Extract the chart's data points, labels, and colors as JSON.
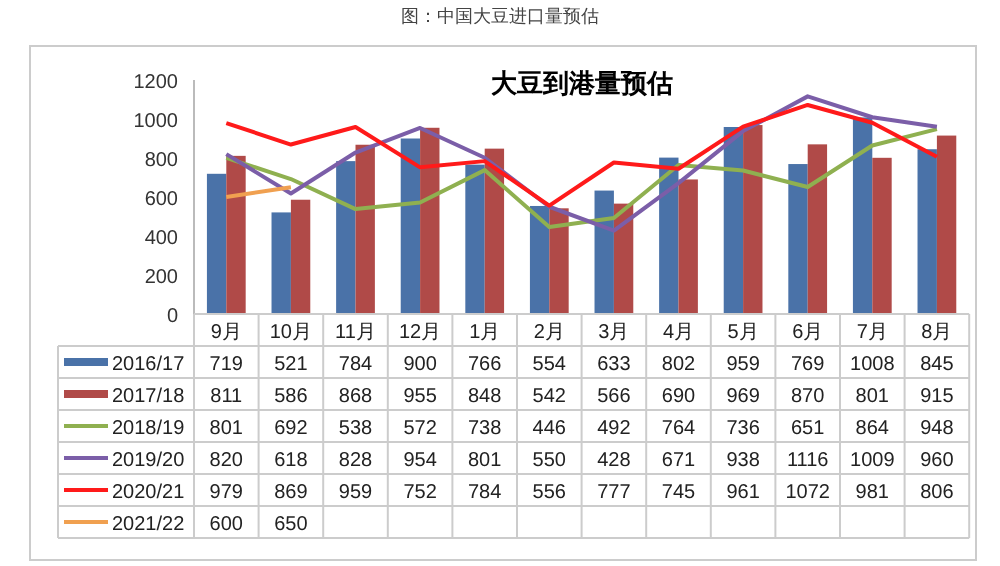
{
  "chart_data": {
    "type": "bar",
    "title": "大豆到港量预估",
    "annotations": [
      "图：中国大豆进口量预估"
    ],
    "categories": [
      "9月",
      "10月",
      "11月",
      "12月",
      "1月",
      "2月",
      "3月",
      "4月",
      "5月",
      "6月",
      "7月",
      "8月"
    ],
    "series": [
      {
        "name": "2016/17",
        "color": "#4a72a8",
        "values": [
          719,
          521,
          784,
          900,
          766,
          554,
          633,
          802,
          959,
          769,
          1008,
          845
        ]
      },
      {
        "name": "2017/18",
        "color": "#b04a48",
        "values": [
          811,
          586,
          868,
          955,
          848,
          542,
          566,
          690,
          969,
          870,
          801,
          915
        ]
      },
      {
        "name": "2018/19",
        "type": "line",
        "color": "#8fb050",
        "values": [
          801,
          692,
          538,
          572,
          738,
          446,
          492,
          764,
          736,
          651,
          864,
          948
        ]
      },
      {
        "name": "2019/20",
        "type": "line",
        "color": "#7b5ea8",
        "values": [
          820,
          618,
          828,
          954,
          801,
          550,
          428,
          671,
          938,
          1116,
          1009,
          960
        ]
      },
      {
        "name": "2020/21",
        "type": "line",
        "color": "#ff1a1a",
        "values": [
          979,
          869,
          959,
          752,
          784,
          556,
          777,
          745,
          961,
          1072,
          981,
          806
        ]
      },
      {
        "name": "2021/22",
        "type": "line",
        "color": "#f0a050",
        "values": [
          600,
          650,
          null,
          null,
          null,
          null,
          null,
          null,
          null,
          null,
          null,
          null
        ]
      }
    ],
    "ylim": [
      0,
      1200
    ],
    "yticks": [
      0,
      200,
      400,
      600,
      800,
      1000,
      1200
    ],
    "data_labels": true,
    "legend": "bottom",
    "marker": "none",
    "line_style": "solid"
  }
}
